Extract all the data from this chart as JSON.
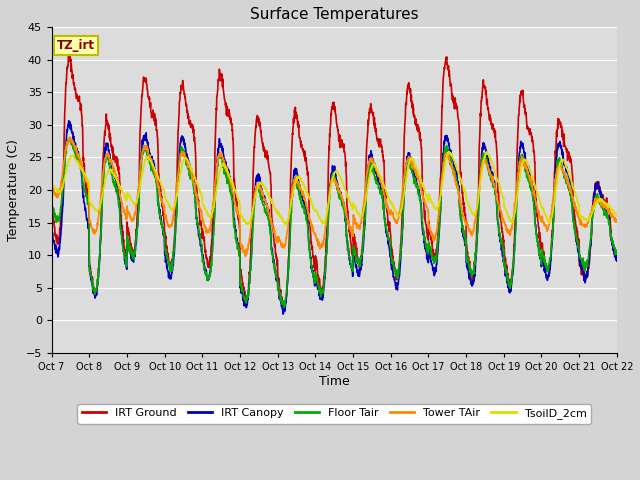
{
  "title": "Surface Temperatures",
  "xlabel": "Time",
  "ylabel": "Temperature (C)",
  "ylim": [
    -5,
    45
  ],
  "background_color": "#d4d4d4",
  "plot_bg_color": "#dcdcdc",
  "grid_color": "#ffffff",
  "series": {
    "IRT Ground": {
      "color": "#cc0000",
      "lw": 1.2
    },
    "IRT Canopy": {
      "color": "#0000bb",
      "lw": 1.2
    },
    "Floor Tair": {
      "color": "#00aa00",
      "lw": 1.2
    },
    "Tower TAir": {
      "color": "#ff8800",
      "lw": 1.2
    },
    "TsoilD_2cm": {
      "color": "#dddd00",
      "lw": 1.2
    }
  },
  "tick_labels": [
    "Oct 7",
    "Oct 8",
    "Oct 9",
    "Oct 10",
    "Oct 11",
    "Oct 12",
    "Oct 13",
    "Oct 14",
    "Oct 15",
    "Oct 16",
    "Oct 17",
    "Oct 18",
    "Oct 19",
    "Oct 20",
    "Oct 21",
    "Oct 22"
  ],
  "tz_label": "TZ_irt",
  "n_points_per_day": 144,
  "day_peaks_irt": [
    42,
    32,
    39,
    38,
    40,
    33,
    34,
    35,
    34,
    38,
    42,
    38,
    37,
    32,
    22
  ],
  "day_mins_irt": [
    9,
    1,
    7,
    5,
    5,
    0,
    -2,
    1,
    6,
    3,
    6,
    3,
    2,
    5,
    5
  ],
  "day_peaks_can": [
    32,
    29,
    30,
    30,
    29,
    24,
    25,
    25,
    27,
    27,
    30,
    29,
    29,
    29,
    22
  ],
  "day_mins_can": [
    8,
    1,
    7,
    4,
    4,
    0,
    -1,
    1,
    5,
    3,
    5,
    3,
    2,
    4,
    5
  ],
  "day_peaks_fl": [
    29,
    27,
    28,
    28,
    27,
    22,
    23,
    24,
    25,
    26,
    28,
    27,
    27,
    26,
    20
  ],
  "day_mins_fl": [
    14,
    2,
    8,
    6,
    4,
    1,
    0,
    2,
    7,
    5,
    7,
    5,
    3,
    6,
    7
  ],
  "day_peaks_tw": [
    29,
    27,
    28,
    27,
    27,
    22,
    23,
    23,
    26,
    26,
    27,
    26,
    26,
    25,
    19
  ],
  "day_mins_tw": [
    18,
    12,
    14,
    13,
    12,
    9,
    10,
    10,
    13,
    14,
    11,
    12,
    12,
    13,
    14
  ],
  "day_peaks_soil": [
    26,
    24,
    26,
    26,
    25,
    22,
    23,
    24,
    25,
    26,
    27,
    27,
    26,
    26,
    19
  ],
  "day_mins_soil": [
    19,
    16,
    17,
    16,
    15,
    14,
    14,
    14,
    15,
    15,
    16,
    15,
    14,
    14,
    15
  ]
}
